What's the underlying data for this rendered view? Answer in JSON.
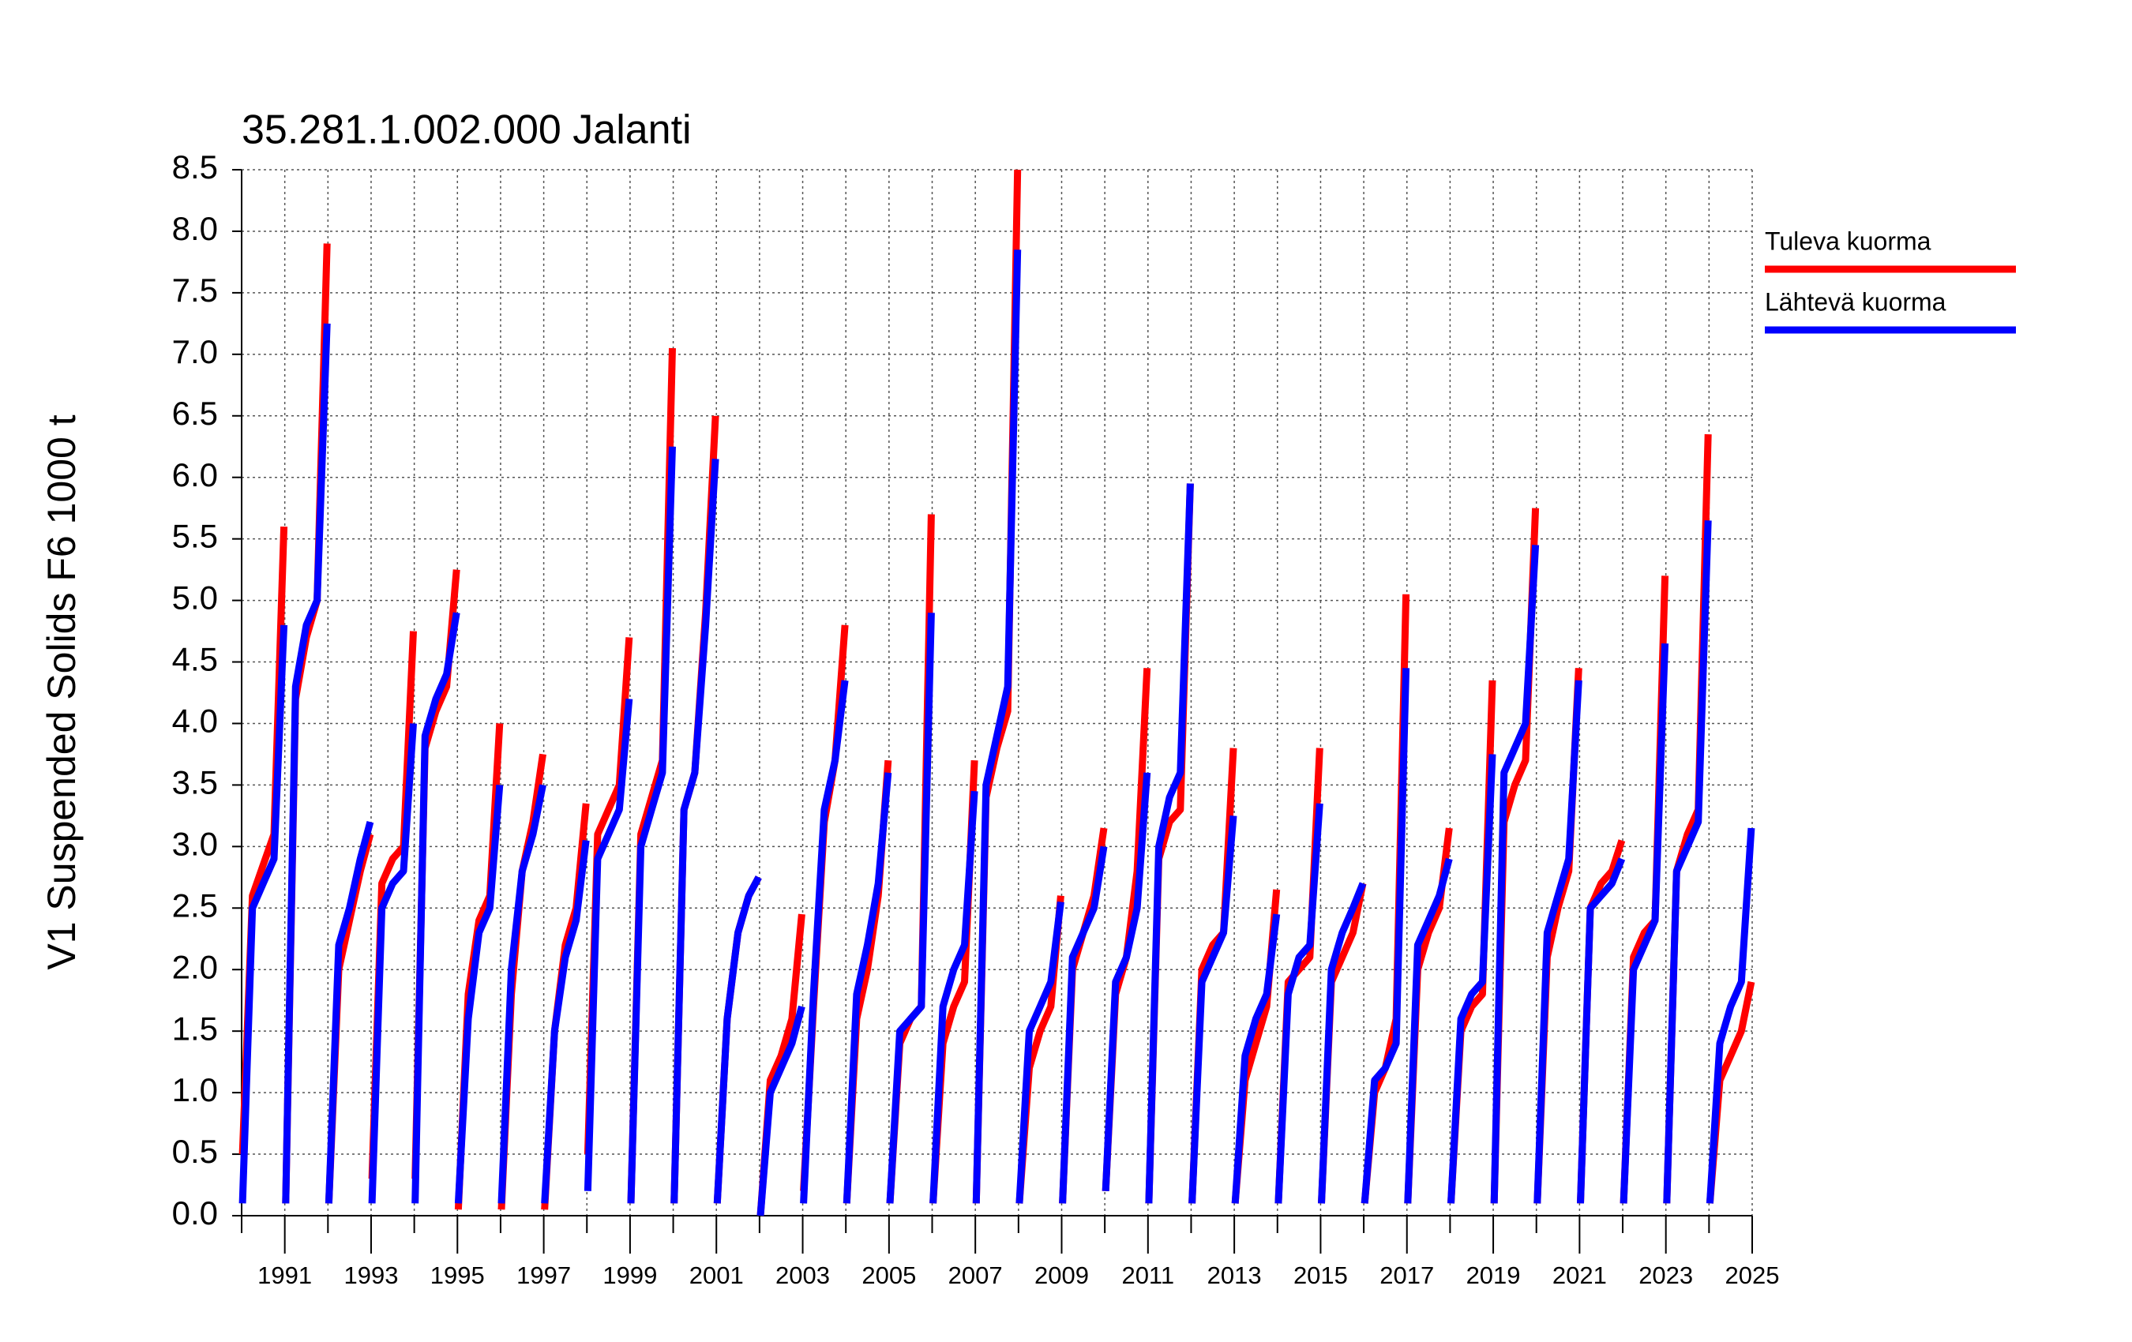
{
  "chart_data": {
    "type": "line",
    "title": "35.281.1.002.000 Jalanti",
    "y_label": "V1 Suspended Solids F6 1000 t",
    "xlim": [
      1990,
      2025
    ],
    "xticks": [
      1991,
      1993,
      1995,
      1997,
      1999,
      2001,
      2003,
      2005,
      2007,
      2009,
      2011,
      2013,
      2015,
      2017,
      2019,
      2021,
      2023,
      2025
    ],
    "xminor": [
      1990,
      1992,
      1994,
      1996,
      1998,
      2000,
      2002,
      2004,
      2006,
      2008,
      2010,
      2012,
      2014,
      2016,
      2018,
      2020,
      2022,
      2024
    ],
    "ylim": [
      0,
      8.5
    ],
    "yticks": [
      {
        "value": 0,
        "label": "0.0"
      },
      0.5,
      {
        "value": 1,
        "label": "1.0"
      },
      1.5,
      {
        "value": 2,
        "label": "2.0"
      },
      2.5,
      {
        "value": 3,
        "label": "3.0"
      },
      3.5,
      {
        "value": 4,
        "label": "4.0"
      },
      4.5,
      {
        "value": 5,
        "label": "5.0"
      },
      5.5,
      {
        "value": 6,
        "label": "6.0"
      },
      6.5,
      {
        "value": 7,
        "label": "7.0"
      },
      7.5,
      {
        "value": 8,
        "label": "8.0"
      },
      8.5
    ],
    "grid": true,
    "legend": "right",
    "x": [
      1990.02,
      1990.25,
      1990.5,
      1990.75,
      1990.98,
      null,
      1991.02,
      1991.25,
      1991.5,
      1991.75,
      1991.98,
      null,
      1992.02,
      1992.25,
      1992.5,
      1992.75,
      1992.98,
      null,
      1993.02,
      1993.25,
      1993.5,
      1993.75,
      1993.98,
      null,
      1994.02,
      1994.25,
      1994.5,
      1994.75,
      1994.98,
      null,
      1995.02,
      1995.25,
      1995.5,
      1995.75,
      1995.98,
      null,
      1996.02,
      1996.25,
      1996.5,
      1996.75,
      1996.98,
      null,
      1997.02,
      1997.25,
      1997.5,
      1997.75,
      1997.98,
      null,
      1998.02,
      1998.25,
      1998.5,
      1998.75,
      1998.98,
      null,
      1999.02,
      1999.25,
      1999.5,
      1999.75,
      1999.98,
      null,
      2000.02,
      2000.25,
      2000.5,
      2000.75,
      2000.98,
      null,
      2001.02,
      2001.25,
      2001.5,
      2001.75,
      2001.98,
      null,
      2002.02,
      2002.25,
      2002.5,
      2002.75,
      2002.98,
      null,
      2003.02,
      2003.25,
      2003.5,
      2003.75,
      2003.98,
      null,
      2004.02,
      2004.25,
      2004.5,
      2004.75,
      2004.98,
      null,
      2005.02,
      2005.25,
      2005.5,
      2005.75,
      2005.98,
      null,
      2006.02,
      2006.25,
      2006.5,
      2006.75,
      2006.98,
      null,
      2007.02,
      2007.25,
      2007.5,
      2007.75,
      2007.98,
      null,
      2008.02,
      2008.25,
      2008.5,
      2008.75,
      2008.98,
      null,
      2009.02,
      2009.25,
      2009.5,
      2009.75,
      2009.98,
      null,
      2010.02,
      2010.25,
      2010.5,
      2010.75,
      2010.98,
      null,
      2011.02,
      2011.25,
      2011.5,
      2011.75,
      2011.98,
      null,
      2012.02,
      2012.25,
      2012.5,
      2012.75,
      2012.98,
      null,
      2013.02,
      2013.25,
      2013.5,
      2013.75,
      2013.98,
      null,
      2014.02,
      2014.25,
      2014.5,
      2014.75,
      2014.98,
      null,
      2015.02,
      2015.25,
      2015.5,
      2015.75,
      2015.98,
      null,
      2016.02,
      2016.25,
      2016.5,
      2016.75,
      2016.98,
      null,
      2017.02,
      2017.25,
      2017.5,
      2017.75,
      2017.98,
      null,
      2018.02,
      2018.25,
      2018.5,
      2018.75,
      2018.98,
      null,
      2019.02,
      2019.25,
      2019.5,
      2019.75,
      2019.98,
      null,
      2020.02,
      2020.25,
      2020.5,
      2020.75,
      2020.98,
      null,
      2021.02,
      2021.25,
      2021.5,
      2021.75,
      2021.98,
      null,
      2022.02,
      2022.25,
      2022.5,
      2022.75,
      2022.98,
      null,
      2023.02,
      2023.25,
      2023.5,
      2023.75,
      2023.98,
      null,
      2024.02,
      2024.25,
      2024.5,
      2024.75,
      2024.98
    ],
    "series": [
      {
        "name": "Tuleva kuorma",
        "color": "#ff0000",
        "values": [
          0.5,
          2.6,
          2.85,
          3.1,
          5.6,
          null,
          0.1,
          4.2,
          4.7,
          5.0,
          7.9,
          null,
          0.1,
          2.0,
          2.4,
          2.8,
          3.1,
          null,
          0.3,
          2.7,
          2.9,
          3.0,
          4.75,
          null,
          0.3,
          3.8,
          4.1,
          4.3,
          5.25,
          null,
          0.05,
          1.8,
          2.4,
          2.6,
          4.0,
          null,
          0.05,
          1.8,
          2.8,
          3.2,
          3.75,
          null,
          0.05,
          1.5,
          2.2,
          2.5,
          3.35,
          null,
          0.5,
          3.1,
          3.3,
          3.5,
          4.7,
          null,
          0.1,
          3.1,
          3.4,
          3.7,
          7.05,
          null,
          0.1,
          3.3,
          3.6,
          4.9,
          6.5,
          null,
          0.1,
          1.6,
          2.3,
          2.6,
          2.75,
          null,
          0.0,
          1.1,
          1.3,
          1.6,
          2.45,
          null,
          0.2,
          1.7,
          3.2,
          3.7,
          4.8,
          null,
          0.1,
          1.6,
          2.0,
          2.6,
          3.7,
          null,
          0.1,
          1.4,
          1.6,
          1.7,
          5.7,
          null,
          0.1,
          1.4,
          1.7,
          1.9,
          3.7,
          null,
          0.1,
          3.4,
          3.8,
          4.1,
          8.5,
          null,
          0.1,
          1.2,
          1.5,
          1.7,
          2.6,
          null,
          0.1,
          2.0,
          2.3,
          2.6,
          3.15,
          null,
          0.2,
          1.8,
          2.1,
          2.8,
          4.45,
          null,
          0.1,
          2.9,
          3.2,
          3.3,
          5.95,
          null,
          0.1,
          2.0,
          2.2,
          2.3,
          3.8,
          null,
          0.1,
          1.1,
          1.4,
          1.7,
          2.65,
          null,
          0.1,
          1.9,
          2.0,
          2.1,
          3.8,
          null,
          0.1,
          1.9,
          2.1,
          2.3,
          2.7,
          null,
          0.1,
          1.0,
          1.2,
          1.6,
          5.05,
          null,
          0.1,
          2.0,
          2.3,
          2.5,
          3.15,
          null,
          0.1,
          1.5,
          1.7,
          1.8,
          4.35,
          null,
          0.1,
          3.2,
          3.5,
          3.7,
          5.75,
          null,
          0.1,
          2.1,
          2.5,
          2.8,
          4.45,
          null,
          0.1,
          2.5,
          2.7,
          2.8,
          3.05,
          null,
          0.1,
          2.1,
          2.3,
          2.4,
          5.2,
          null,
          0.1,
          2.8,
          3.1,
          3.3,
          6.35,
          null,
          0.1,
          1.1,
          1.3,
          1.5,
          1.9
        ]
      },
      {
        "name": "Lähtevä kuorma",
        "color": "#0000ff",
        "values": [
          0.1,
          2.5,
          2.7,
          2.9,
          4.8,
          null,
          0.1,
          4.3,
          4.8,
          5.0,
          7.25,
          null,
          0.1,
          2.2,
          2.5,
          2.9,
          3.2,
          null,
          0.1,
          2.5,
          2.7,
          2.8,
          4.0,
          null,
          0.1,
          3.9,
          4.2,
          4.4,
          4.9,
          null,
          0.1,
          1.6,
          2.3,
          2.5,
          3.5,
          null,
          0.1,
          2.0,
          2.8,
          3.1,
          3.5,
          null,
          0.1,
          1.5,
          2.1,
          2.4,
          3.05,
          null,
          0.2,
          2.9,
          3.1,
          3.3,
          4.2,
          null,
          0.1,
          3.0,
          3.3,
          3.6,
          6.25,
          null,
          0.1,
          3.3,
          3.6,
          4.8,
          6.15,
          null,
          0.1,
          1.6,
          2.3,
          2.6,
          2.75,
          null,
          0.0,
          1.0,
          1.2,
          1.4,
          1.7,
          null,
          0.1,
          1.8,
          3.3,
          3.7,
          4.35,
          null,
          0.1,
          1.8,
          2.2,
          2.7,
          3.6,
          null,
          0.1,
          1.5,
          1.6,
          1.7,
          4.9,
          null,
          0.1,
          1.7,
          2.0,
          2.2,
          3.45,
          null,
          0.1,
          3.5,
          3.9,
          4.3,
          7.85,
          null,
          0.1,
          1.5,
          1.7,
          1.9,
          2.55,
          null,
          0.1,
          2.1,
          2.3,
          2.5,
          3.0,
          null,
          0.2,
          1.9,
          2.1,
          2.5,
          3.6,
          null,
          0.1,
          3.0,
          3.4,
          3.6,
          5.95,
          null,
          0.1,
          1.9,
          2.1,
          2.3,
          3.25,
          null,
          0.1,
          1.3,
          1.6,
          1.8,
          2.45,
          null,
          0.1,
          1.8,
          2.1,
          2.2,
          3.35,
          null,
          0.1,
          2.0,
          2.3,
          2.5,
          2.7,
          null,
          0.1,
          1.1,
          1.2,
          1.4,
          4.45,
          null,
          0.1,
          2.2,
          2.4,
          2.6,
          2.9,
          null,
          0.1,
          1.6,
          1.8,
          1.9,
          3.75,
          null,
          0.1,
          3.6,
          3.8,
          4.0,
          5.45,
          null,
          0.1,
          2.3,
          2.6,
          2.9,
          4.35,
          null,
          0.1,
          2.5,
          2.6,
          2.7,
          2.9,
          null,
          0.1,
          2.0,
          2.2,
          2.4,
          4.65,
          null,
          0.1,
          2.8,
          3.0,
          3.2,
          5.65,
          null,
          0.1,
          1.4,
          1.7,
          1.9,
          3.15
        ]
      }
    ]
  }
}
